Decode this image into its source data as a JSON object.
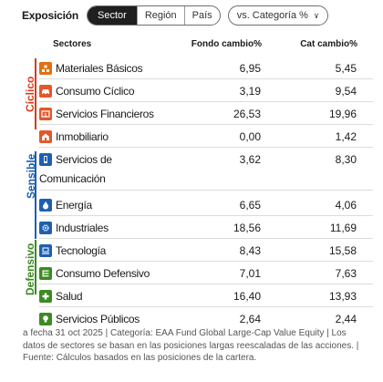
{
  "header": {
    "title": "Exposición",
    "tabs": [
      {
        "label": "Sector",
        "active": true
      },
      {
        "label": "Región",
        "active": false
      },
      {
        "label": "País",
        "active": false
      }
    ],
    "compare_dropdown": "vs. Categoría %"
  },
  "columns": {
    "sectors": "Sectores",
    "fund": "Fondo cambio%",
    "cat": "Cat cambio%"
  },
  "groups": {
    "ciclico": {
      "label": "Cíclico",
      "color": "#d83b1a"
    },
    "sensible": {
      "label": "Sensible",
      "color": "#1b5fb3"
    },
    "defensivo": {
      "label": "Defensivo",
      "color": "#3c8a23"
    }
  },
  "rows": [
    {
      "label": "Materiales Básicos",
      "fund": "6,95",
      "cat": "5,45",
      "icon": "materials-icon",
      "color": "#e07016"
    },
    {
      "label": "Consumo Cíclico",
      "fund": "3,19",
      "cat": "9,54",
      "icon": "car-icon",
      "color": "#e2582a"
    },
    {
      "label": "Servicios Financieros",
      "fund": "26,53",
      "cat": "19,96",
      "icon": "dollar-icon",
      "color": "#e2582a"
    },
    {
      "label": "Inmobiliario",
      "fund": "0,00",
      "cat": "1,42",
      "icon": "house-icon",
      "color": "#e2582a"
    },
    {
      "label": "Servicios de",
      "label2": "Comunicación",
      "fund": "3,62",
      "cat": "8,30",
      "icon": "phone-icon",
      "color": "#1e5fb0"
    },
    {
      "label": "Energía",
      "fund": "6,65",
      "cat": "4,06",
      "icon": "flame-icon",
      "color": "#1e5fb0"
    },
    {
      "label": "Industriales",
      "fund": "18,56",
      "cat": "11,69",
      "icon": "gear-icon",
      "color": "#1e5fb0"
    },
    {
      "label": "Tecnología",
      "fund": "8,43",
      "cat": "15,58",
      "icon": "computer-icon",
      "color": "#1e5fb0"
    },
    {
      "label": "Consumo Defensivo",
      "fund": "7,01",
      "cat": "7,63",
      "icon": "shelf-icon",
      "color": "#3c8a23"
    },
    {
      "label": "Salud",
      "fund": "16,40",
      "cat": "13,93",
      "icon": "cross-icon",
      "color": "#3c8a23"
    },
    {
      "label": "Servicios Públicos",
      "fund": "2,64",
      "cat": "2,44",
      "icon": "bulb-icon",
      "color": "#3c8a23"
    }
  ],
  "footnote": "a fecha 31 oct 2025 | Categoría: EAA Fund Global Large-Cap Value Equity | Los datos de sectores se basan en las posiciones largas reescaladas de las acciones. | Fuente: Cálculos basados en las posiciones de la cartera."
}
